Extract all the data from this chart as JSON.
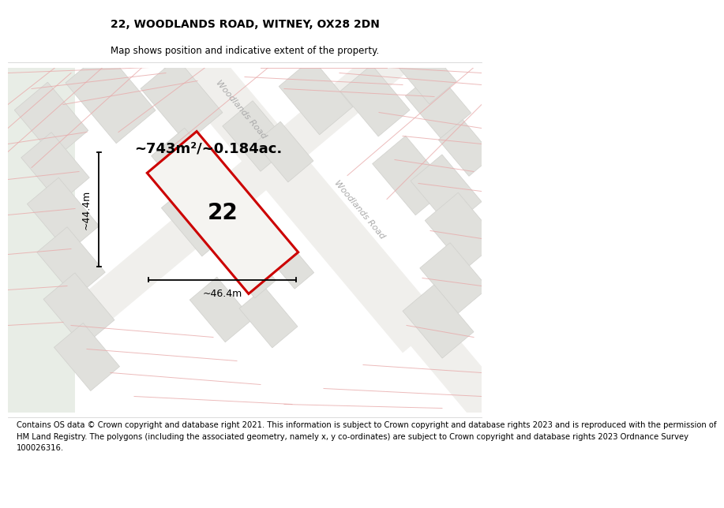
{
  "title": "22, WOODLANDS ROAD, WITNEY, OX28 2DN",
  "subtitle": "Map shows position and indicative extent of the property.",
  "area_text": "~743m²/~0.184ac.",
  "plot_number": "22",
  "dim_width": "~46.4m",
  "dim_height": "~44.4m",
  "road_label": "Woodlands Road",
  "copyright_text": "Contains OS data © Crown copyright and database right 2021. This information is subject to Crown copyright and database rights 2023 and is reproduced with the permission of\nHM Land Registry. The polygons (including the associated geometry, namely x, y co-ordinates) are subject to Crown copyright and database rights 2023 Ordnance Survey\n100026316.",
  "map_bg": "#f7f7f5",
  "left_bg": "#e8ede6",
  "building_fill": "#e0e0dc",
  "building_edge": "#d0d0cc",
  "road_fill": "#f0efec",
  "red_color": "#cc0000",
  "pink_color": "#e8aaaa",
  "plot_fill": "#f5f4f1",
  "road_text_color": "#aaaaaa",
  "title_fontsize": 10,
  "subtitle_fontsize": 8.5,
  "area_fontsize": 13,
  "plot_num_fontsize": 20,
  "dim_fontsize": 9,
  "road_fontsize": 8,
  "copyright_fontsize": 7.2
}
